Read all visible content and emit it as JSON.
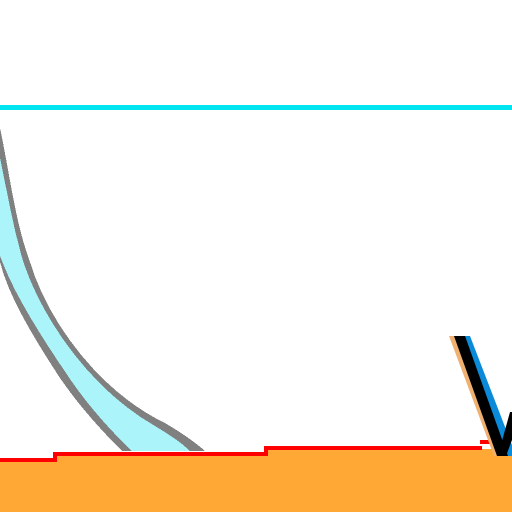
{
  "scene": {
    "colors": {
      "background": "#ffffff",
      "horizon_line": "#00e5f0",
      "arc_fill": "#aaf4fa",
      "arc_outline": "#808080",
      "ground": "#ffa836",
      "ground_edge": "#ff0000",
      "stroke_dark": "#000000",
      "stroke_light": "#0a8ad8",
      "stroke_warm": "#f0b070"
    },
    "icons": [
      "cyan-horizon-line",
      "curved-cyan-blade",
      "orange-ground",
      "red-ground-edge",
      "dark-diagonal-stroke"
    ]
  }
}
